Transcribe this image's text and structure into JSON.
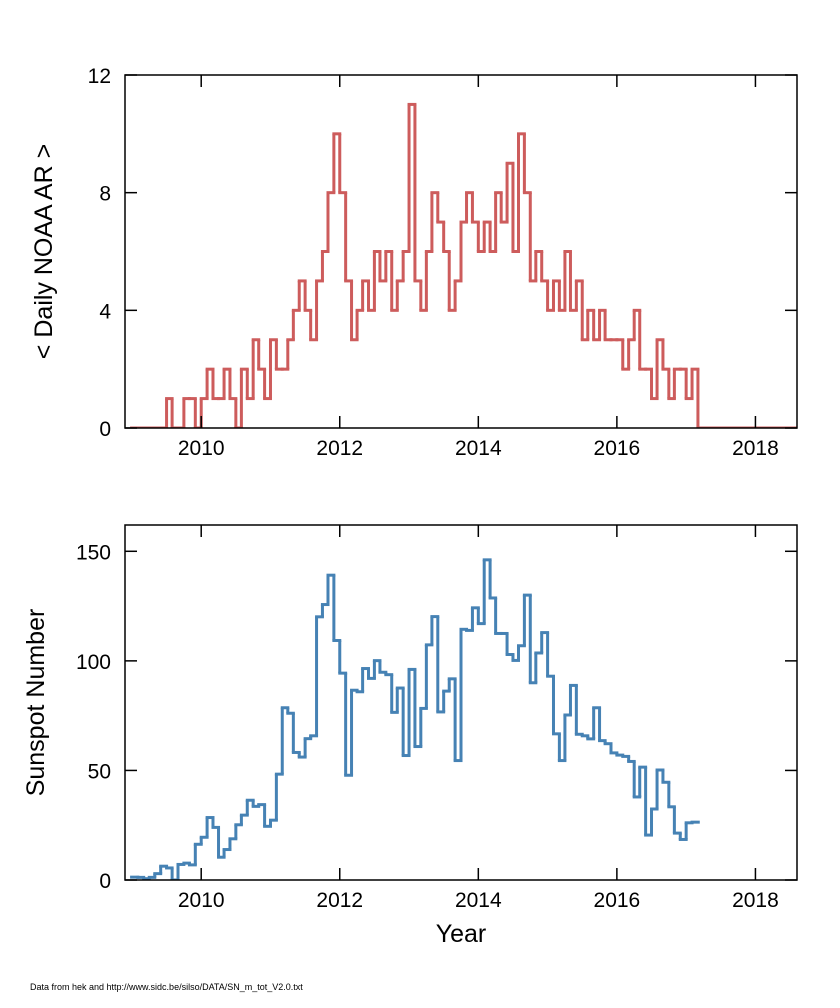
{
  "chart_data": [
    {
      "type": "line",
      "drawstyle": "steps-mid",
      "ylabel": "< Daily NOAA AR >",
      "color": "#cd5c5c",
      "x": [
        2009.04,
        2009.13,
        2009.21,
        2009.29,
        2009.37,
        2009.46,
        2009.54,
        2009.62,
        2009.71,
        2009.79,
        2009.87,
        2009.96,
        2010.04,
        2010.13,
        2010.21,
        2010.29,
        2010.37,
        2010.46,
        2010.54,
        2010.62,
        2010.71,
        2010.79,
        2010.87,
        2010.96,
        2011.04,
        2011.13,
        2011.21,
        2011.29,
        2011.37,
        2011.46,
        2011.54,
        2011.62,
        2011.71,
        2011.79,
        2011.87,
        2011.96,
        2012.04,
        2012.13,
        2012.21,
        2012.29,
        2012.37,
        2012.46,
        2012.54,
        2012.62,
        2012.71,
        2012.79,
        2012.87,
        2012.96,
        2013.04,
        2013.13,
        2013.21,
        2013.29,
        2013.37,
        2013.46,
        2013.54,
        2013.62,
        2013.71,
        2013.79,
        2013.87,
        2013.96,
        2014.04,
        2014.13,
        2014.21,
        2014.29,
        2014.37,
        2014.46,
        2014.54,
        2014.62,
        2014.71,
        2014.79,
        2014.87,
        2014.96,
        2015.04,
        2015.13,
        2015.21,
        2015.29,
        2015.37,
        2015.46,
        2015.54,
        2015.62,
        2015.71,
        2015.79,
        2015.87,
        2015.96,
        2016.04,
        2016.13,
        2016.21,
        2016.29,
        2016.37,
        2016.46,
        2016.54,
        2016.62,
        2016.71,
        2016.79,
        2016.87,
        2016.96,
        2017.04,
        2017.13,
        2017.21,
        2018.5
      ],
      "values": [
        0,
        0,
        0,
        0,
        0,
        0,
        1,
        0,
        0,
        1,
        1,
        0,
        1,
        2,
        1,
        1,
        2,
        1,
        0,
        2,
        1,
        3,
        2,
        1,
        3,
        2,
        2,
        3,
        4,
        5,
        4,
        3,
        5,
        6,
        8,
        10,
        8,
        5,
        3,
        4,
        5,
        4,
        6,
        5,
        6,
        4,
        5,
        6,
        11,
        5,
        4,
        6,
        8,
        7,
        6,
        4,
        5,
        7,
        8,
        7,
        6,
        7,
        6,
        8,
        7,
        9,
        6,
        10,
        8,
        5,
        6,
        5,
        4,
        5,
        4,
        6,
        4,
        5,
        3,
        4,
        3,
        4,
        3,
        3,
        3,
        2,
        3,
        4,
        2,
        2,
        1,
        3,
        2,
        1,
        2,
        2,
        1,
        2,
        0,
        0
      ],
      "xlim": [
        2008.9,
        2018.6
      ],
      "ylim": [
        0,
        12
      ],
      "xticks": [
        2010,
        2012,
        2014,
        2016,
        2018
      ],
      "yticks": [
        0,
        4,
        8,
        12
      ]
    },
    {
      "type": "line",
      "drawstyle": "steps-mid",
      "ylabel": "Sunspot Number",
      "xlabel": "Year",
      "color": "#4682b4",
      "x": [
        2009.04,
        2009.13,
        2009.21,
        2009.29,
        2009.37,
        2009.46,
        2009.54,
        2009.62,
        2009.71,
        2009.79,
        2009.87,
        2009.96,
        2010.04,
        2010.13,
        2010.21,
        2010.29,
        2010.37,
        2010.46,
        2010.54,
        2010.62,
        2010.71,
        2010.79,
        2010.87,
        2010.96,
        2011.04,
        2011.13,
        2011.21,
        2011.29,
        2011.37,
        2011.46,
        2011.54,
        2011.62,
        2011.71,
        2011.79,
        2011.87,
        2011.96,
        2012.04,
        2012.13,
        2012.21,
        2012.29,
        2012.37,
        2012.46,
        2012.54,
        2012.62,
        2012.71,
        2012.79,
        2012.87,
        2012.96,
        2013.04,
        2013.13,
        2013.21,
        2013.29,
        2013.37,
        2013.46,
        2013.54,
        2013.62,
        2013.71,
        2013.79,
        2013.87,
        2013.96,
        2014.04,
        2014.13,
        2014.21,
        2014.29,
        2014.37,
        2014.46,
        2014.54,
        2014.62,
        2014.71,
        2014.79,
        2014.87,
        2014.96,
        2015.04,
        2015.13,
        2015.21,
        2015.29,
        2015.37,
        2015.46,
        2015.54,
        2015.62,
        2015.71,
        2015.79,
        2015.87,
        2015.96,
        2016.04,
        2016.13,
        2016.21,
        2016.29,
        2016.37,
        2016.46,
        2016.54,
        2016.62,
        2016.71,
        2016.79,
        2016.87,
        2016.96,
        2017.04,
        2017.13
      ],
      "values": [
        1.3,
        1.2,
        0.6,
        1.2,
        2.9,
        6.3,
        5.5,
        0,
        7.1,
        7.7,
        6.9,
        16.3,
        19.5,
        28.5,
        24.0,
        10.4,
        13.9,
        18.8,
        25.2,
        29.6,
        36.4,
        33.6,
        34.4,
        24.5,
        27.3,
        48.3,
        78.6,
        76.1,
        58.2,
        56.1,
        64.5,
        65.8,
        120.1,
        125.7,
        139.1,
        109.3,
        94.4,
        47.8,
        86.6,
        85.9,
        96.5,
        92.0,
        100.1,
        94.8,
        93.7,
        76.5,
        87.6,
        56.8,
        96.1,
        60.9,
        78.3,
        107.3,
        120.2,
        76.7,
        86.2,
        91.8,
        54.5,
        114.4,
        113.9,
        124.2,
        117.0,
        146.1,
        128.7,
        112.5,
        112.5,
        102.9,
        100.2,
        106.9,
        130.0,
        90.0,
        103.6,
        112.9,
        93.0,
        66.7,
        54.5,
        75.3,
        88.8,
        66.5,
        65.8,
        64.4,
        78.6,
        63.6,
        62.2,
        58.0,
        57.0,
        56.4,
        54.1,
        37.9,
        51.5,
        20.5,
        32.4,
        50.2,
        44.6,
        33.4,
        21.4,
        18.5,
        26.1,
        26.4
      ],
      "xlim": [
        2008.9,
        2018.6
      ],
      "ylim": [
        0,
        162
      ],
      "xticks": [
        2010,
        2012,
        2014,
        2016,
        2018
      ],
      "yticks": [
        0,
        50,
        100,
        150
      ]
    }
  ],
  "footer": "Data from hek and http://www.sidc.be/silso/DATA/SN_m_tot_V2.0.txt"
}
